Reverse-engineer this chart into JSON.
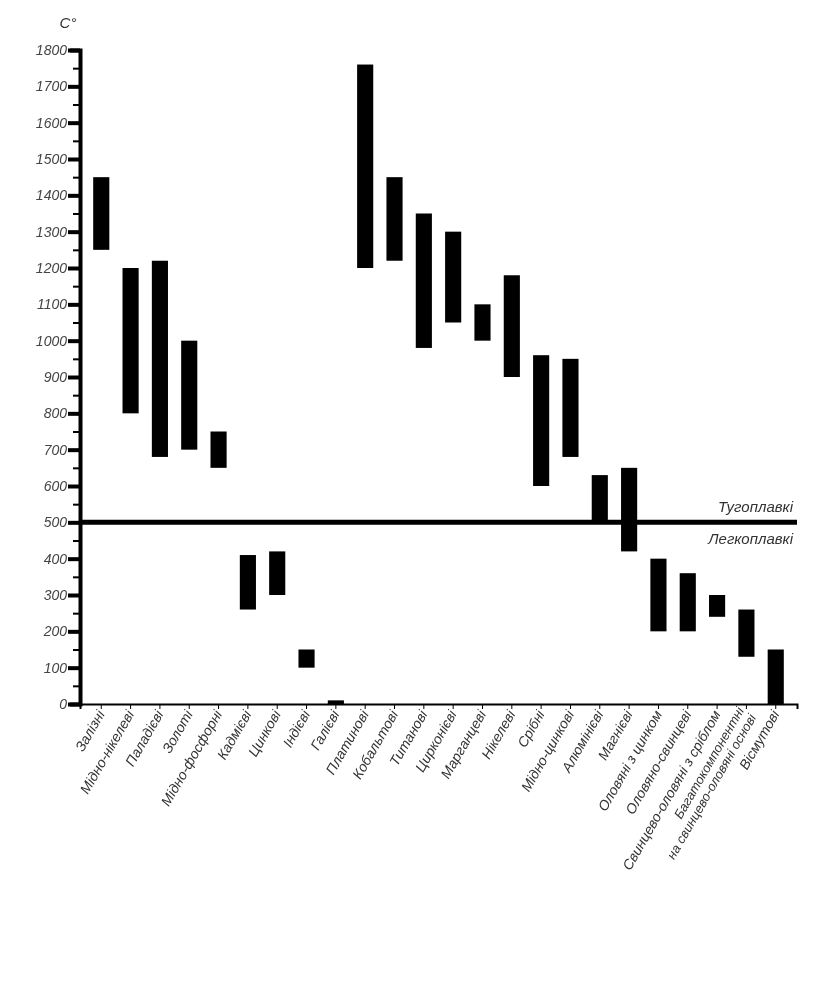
{
  "chart_data": {
    "type": "bar",
    "ylabel": "С°",
    "color": "#000000",
    "categories": [
      "Залізні",
      "Мідно-нікелеві",
      "Паладієві",
      "Золоті",
      "Мідно-фосфорні",
      "Кадмієві",
      "Цинкові",
      "Індієві",
      "Галієві",
      "Платинові",
      "Кобальтові",
      "Титанові",
      "Цирконієві",
      "Марганцеві",
      "Нікелеві",
      "Срібні",
      "Мідно-цинкові",
      "Алюмінієві",
      "Магнієві",
      "Оловяні з цинком",
      "Оловяно-свинцеві",
      "Свинцево-оловяні з сріблом",
      "Багатокомпонентні\nна свинцево-оловяні основі",
      "Вісмутові"
    ],
    "base": [
      1250,
      800,
      680,
      700,
      650,
      260,
      300,
      100,
      0,
      1200,
      1220,
      980,
      1050,
      1000,
      900,
      600,
      680,
      500,
      420,
      200,
      200,
      240,
      130,
      0
    ],
    "values": [
      200,
      400,
      540,
      300,
      100,
      150,
      120,
      50,
      10,
      560,
      230,
      370,
      250,
      100,
      280,
      360,
      270,
      130,
      230,
      200,
      160,
      60,
      130,
      150
    ],
    "ylim": [
      0,
      1800
    ],
    "yticks": [
      0,
      {
        "value": 50,
        "label": null
      },
      100,
      {
        "value": 150,
        "label": null
      },
      200,
      {
        "value": 250,
        "label": null
      },
      300,
      {
        "value": 350,
        "label": null
      },
      400,
      {
        "value": 450,
        "label": null
      },
      500,
      {
        "value": 550,
        "label": null
      },
      600,
      {
        "value": 650,
        "label": null
      },
      700,
      {
        "value": 750,
        "label": null
      },
      800,
      {
        "value": 850,
        "label": null
      },
      900,
      {
        "value": 950,
        "label": null
      },
      1000,
      {
        "value": 1050,
        "label": null
      },
      1100,
      {
        "value": 1150,
        "label": null
      },
      1200,
      {
        "value": 1250,
        "label": null
      },
      1300,
      {
        "value": 1350,
        "label": null
      },
      1400,
      {
        "value": 1450,
        "label": null
      },
      1500,
      {
        "value": 1550,
        "label": null
      },
      1600,
      {
        "value": 1650,
        "label": null
      },
      1700,
      {
        "value": 1750,
        "label": null
      },
      1800
    ],
    "ref_lines": [
      {
        "axis": "y",
        "value": 500,
        "color": "#000000"
      }
    ],
    "annotations": [
      "Тугоплавкі",
      "Легкоплавкі"
    ]
  }
}
